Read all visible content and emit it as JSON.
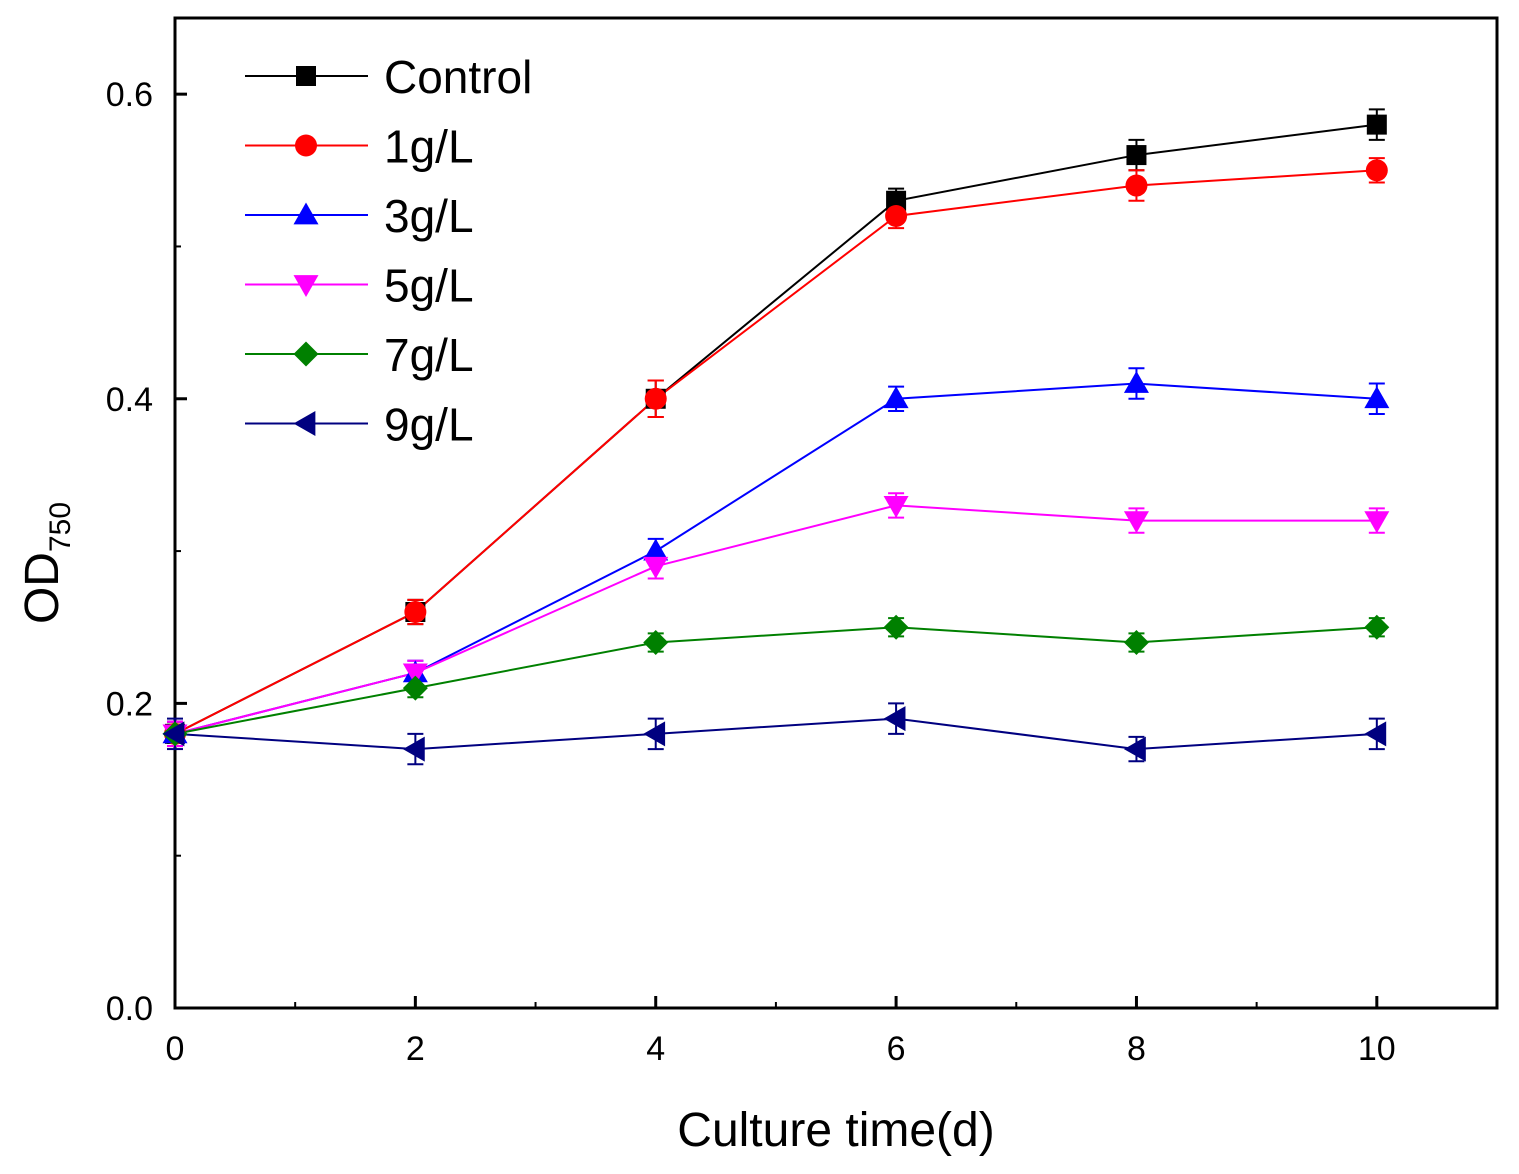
{
  "chart_data": {
    "type": "line",
    "xlabel": "Culture time(d)",
    "ylabel_main": "OD",
    "ylabel_sub": "750",
    "xlim": [
      0,
      11
    ],
    "ylim": [
      0,
      0.65
    ],
    "x_ticks": [
      0,
      2,
      4,
      6,
      8,
      10
    ],
    "y_ticks": [
      0.0,
      0.2,
      0.4,
      0.6
    ],
    "x_tick_labels": [
      "0",
      "2",
      "4",
      "6",
      "8",
      "10"
    ],
    "y_tick_labels": [
      "0.0",
      "0.2",
      "0.4",
      "0.6"
    ],
    "grid": false,
    "legend_position": "top-left",
    "x": [
      0,
      2,
      4,
      6,
      8,
      10
    ],
    "series": [
      {
        "name": "Control",
        "color": "#000000",
        "marker": "square",
        "values": [
          0.18,
          0.26,
          0.4,
          0.53,
          0.56,
          0.58
        ],
        "errors": [
          0.008,
          0.008,
          0.012,
          0.008,
          0.01,
          0.01
        ]
      },
      {
        "name": "1g/L",
        "color": "#ff0000",
        "marker": "circle",
        "values": [
          0.18,
          0.26,
          0.4,
          0.52,
          0.54,
          0.55
        ],
        "errors": [
          0.008,
          0.008,
          0.012,
          0.008,
          0.01,
          0.008
        ]
      },
      {
        "name": "3g/L",
        "color": "#0000ff",
        "marker": "triangle-up",
        "values": [
          0.18,
          0.22,
          0.3,
          0.4,
          0.41,
          0.4
        ],
        "errors": [
          0.008,
          0.008,
          0.008,
          0.008,
          0.01,
          0.01
        ]
      },
      {
        "name": "5g/L",
        "color": "#ff00ff",
        "marker": "triangle-down",
        "values": [
          0.18,
          0.22,
          0.29,
          0.33,
          0.32,
          0.32
        ],
        "errors": [
          0.008,
          0.008,
          0.008,
          0.008,
          0.008,
          0.008
        ]
      },
      {
        "name": "7g/L",
        "color": "#008000",
        "marker": "diamond",
        "values": [
          0.18,
          0.21,
          0.24,
          0.25,
          0.24,
          0.25
        ],
        "errors": [
          0.006,
          0.006,
          0.006,
          0.006,
          0.006,
          0.006
        ]
      },
      {
        "name": "9g/L",
        "color": "#000080",
        "marker": "triangle-left",
        "values": [
          0.18,
          0.17,
          0.18,
          0.19,
          0.17,
          0.18
        ],
        "errors": [
          0.01,
          0.01,
          0.01,
          0.01,
          0.008,
          0.01
        ]
      }
    ]
  }
}
